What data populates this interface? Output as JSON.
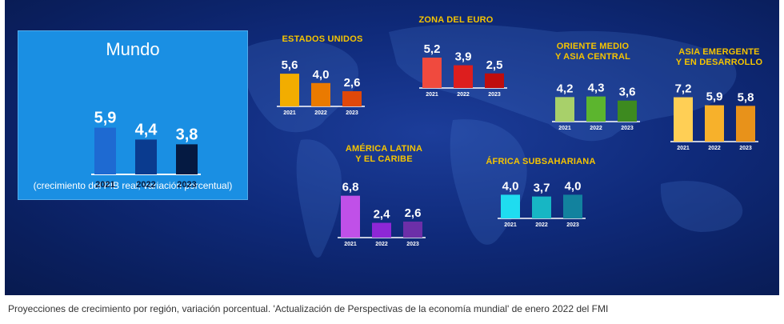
{
  "chart_data": [
    {
      "type": "bar",
      "id": "mundo",
      "title": "Mundo",
      "categories": [
        "2021",
        "2022",
        "2023"
      ],
      "values": [
        5.9,
        4.4,
        3.8
      ],
      "value_labels": [
        "5,9",
        "4,4",
        "3,8"
      ],
      "colors": [
        "#1e6ad2",
        "#0a3b8f",
        "#051a42"
      ],
      "note": "(crecimiento del PIB real, variación porcentual)"
    },
    {
      "type": "bar",
      "id": "estados-unidos",
      "title": "ESTADOS UNIDOS",
      "categories": [
        "2021",
        "2022",
        "2023"
      ],
      "values": [
        5.6,
        4.0,
        2.6
      ],
      "value_labels": [
        "5,6",
        "4,0",
        "2,6"
      ],
      "colors": [
        "#f2ad00",
        "#ea7a00",
        "#e0480a"
      ]
    },
    {
      "type": "bar",
      "id": "zona-del-euro",
      "title": "ZONA DEL EURO",
      "categories": [
        "2021",
        "2022",
        "2023"
      ],
      "values": [
        5.2,
        3.9,
        2.5
      ],
      "value_labels": [
        "5,2",
        "3,9",
        "2,5"
      ],
      "colors": [
        "#f04a3e",
        "#dd1e1e",
        "#bf0d0d"
      ]
    },
    {
      "type": "bar",
      "id": "oriente-medio",
      "title": [
        "ORIENTE MEDIO",
        "Y ASIA CENTRAL"
      ],
      "categories": [
        "2021",
        "2022",
        "2023"
      ],
      "values": [
        4.2,
        4.3,
        3.6
      ],
      "value_labels": [
        "4,2",
        "4,3",
        "3,6"
      ],
      "colors": [
        "#a8d06a",
        "#5cb52e",
        "#3d8a1f"
      ]
    },
    {
      "type": "bar",
      "id": "asia-emergente",
      "title": [
        "ASIA EMERGENTE",
        "Y EN DESARROLLO"
      ],
      "categories": [
        "2021",
        "2022",
        "2023"
      ],
      "values": [
        7.2,
        5.9,
        5.8
      ],
      "value_labels": [
        "7,2",
        "5,9",
        "5,8"
      ],
      "colors": [
        "#ffcf55",
        "#f7b12b",
        "#e8921a"
      ]
    },
    {
      "type": "bar",
      "id": "america-latina",
      "title": [
        "AMÉRICA LATINA",
        "Y EL CARIBE"
      ],
      "categories": [
        "2021",
        "2022",
        "2023"
      ],
      "values": [
        6.8,
        2.4,
        2.6
      ],
      "value_labels": [
        "6,8",
        "2,4",
        "2,6"
      ],
      "colors": [
        "#c050e8",
        "#8e27d6",
        "#6c2fa8"
      ]
    },
    {
      "type": "bar",
      "id": "africa-subsahariana",
      "title": "ÁFRICA SUBSAHARIANA",
      "categories": [
        "2021",
        "2022",
        "2023"
      ],
      "values": [
        4.0,
        3.7,
        4.0
      ],
      "value_labels": [
        "4,0",
        "3,7",
        "4,0"
      ],
      "colors": [
        "#1fdcf0",
        "#17b6c4",
        "#12829e"
      ]
    }
  ],
  "caption": "Proyecciones de crecimiento por región, variación porcentual. 'Actualización de Perspectivas de la economía mundial' de enero 2022 del FMI"
}
